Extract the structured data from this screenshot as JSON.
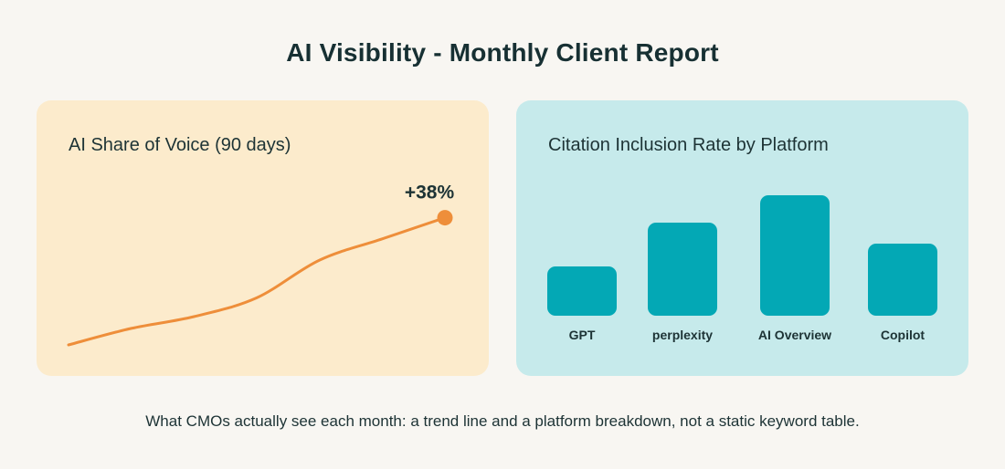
{
  "header": {
    "title": "AI Visibility - Monthly Client Report"
  },
  "colors": {
    "line": "#ee8e3a",
    "bar": "#03a8b5",
    "left_card": "#fcebcc",
    "right_card": "#c6eaeb"
  },
  "chart_data": [
    {
      "type": "line",
      "title": "AI Share of Voice (90 days)",
      "annotation": "+38%",
      "x": [
        0,
        15,
        30,
        45,
        60,
        75,
        90
      ],
      "y": [
        0,
        14,
        24,
        40,
        72,
        90,
        108
      ],
      "ylim": [
        0,
        110
      ],
      "grid": false
    },
    {
      "type": "bar",
      "title": "Citation Inclusion Rate by Platform",
      "categories": [
        "GPT",
        "perplexity",
        "AI Overview",
        "Copilot"
      ],
      "values": [
        54,
        102,
        132,
        79
      ],
      "ylim": [
        0,
        140
      ],
      "grid": false
    }
  ],
  "caption": "What CMOs actually see each month: a trend line and a platform breakdown, not a static keyword table."
}
